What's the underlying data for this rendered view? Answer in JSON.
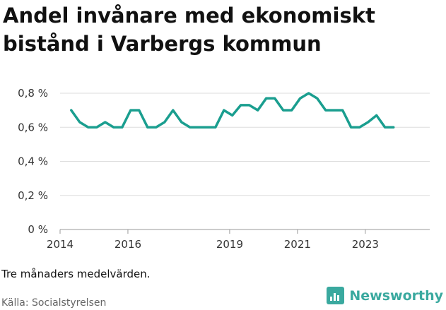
{
  "header": {
    "title": "Andel invånare med ekonomiskt bistånd i Varbergs kommun"
  },
  "footer": {
    "note": "Tre månaders medelvärden.",
    "source": "Källa: Socialstyrelsen",
    "brand": "Newsworthy"
  },
  "colors": {
    "line": "#1a9e8f",
    "brand": "#3aa99f",
    "grid": "#dddddd"
  },
  "icons": {
    "brand_logo": "bar-chart-icon"
  },
  "chart_data": {
    "type": "line",
    "title": "Andel invånare med ekonomiskt bistånd i Varbergs kommun",
    "xlabel": "",
    "ylabel": "",
    "ylim": [
      0,
      0.8
    ],
    "xlim": [
      2014,
      2024.9
    ],
    "y_ticks": [
      {
        "value": 0,
        "label": "0 %"
      },
      {
        "value": 0.2,
        "label": "0,2 %"
      },
      {
        "value": 0.4,
        "label": "0,4 %"
      },
      {
        "value": 0.6,
        "label": "0,6 %"
      },
      {
        "value": 0.8,
        "label": "0,8 %"
      }
    ],
    "x_ticks": [
      {
        "value": 2014,
        "label": "2014"
      },
      {
        "value": 2016,
        "label": "2016"
      },
      {
        "value": 2019,
        "label": "2019"
      },
      {
        "value": 2021,
        "label": "2021"
      },
      {
        "value": 2023,
        "label": "2023"
      }
    ],
    "grid": true,
    "series": [
      {
        "x": [
          2014.33,
          2014.58,
          2014.83,
          2015.08,
          2015.33,
          2015.58,
          2015.83,
          2016.08,
          2016.33,
          2016.58,
          2016.83,
          2017.08,
          2017.33,
          2017.58,
          2017.83,
          2018.08,
          2018.33,
          2018.58,
          2018.83,
          2019.08,
          2019.33,
          2019.58,
          2019.83,
          2020.08,
          2020.33,
          2020.58,
          2020.83,
          2021.08,
          2021.33,
          2021.58,
          2021.83,
          2022.08,
          2022.33,
          2022.58,
          2022.83,
          2023.08,
          2023.33,
          2023.58,
          2023.83
        ],
        "values": [
          0.7,
          0.63,
          0.6,
          0.6,
          0.63,
          0.6,
          0.6,
          0.7,
          0.7,
          0.6,
          0.6,
          0.63,
          0.7,
          0.63,
          0.6,
          0.6,
          0.6,
          0.6,
          0.7,
          0.67,
          0.73,
          0.73,
          0.7,
          0.77,
          0.77,
          0.7,
          0.7,
          0.77,
          0.8,
          0.77,
          0.7,
          0.7,
          0.7,
          0.6,
          0.6,
          0.63,
          0.67,
          0.6,
          0.6
        ]
      }
    ]
  }
}
